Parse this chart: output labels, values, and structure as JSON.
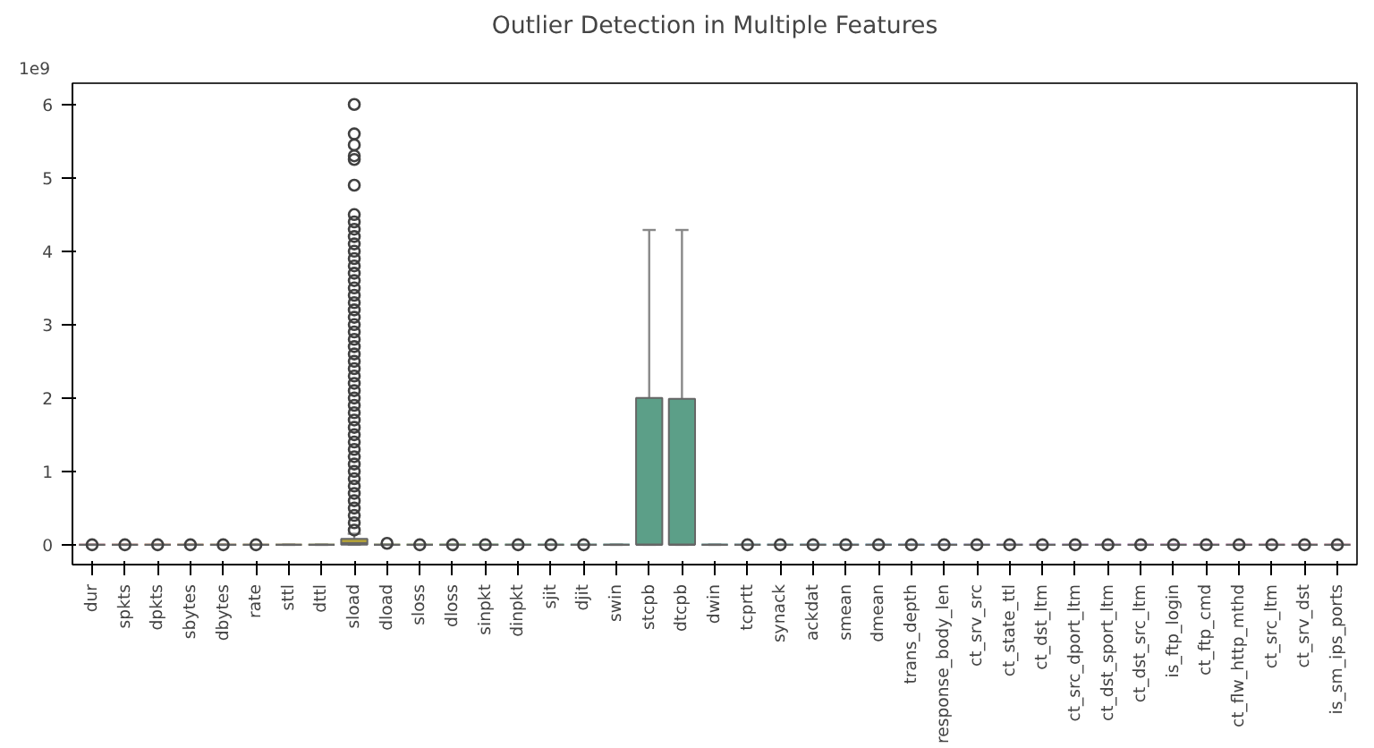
{
  "chart_data": {
    "type": "box",
    "title": "Outlier Detection in Multiple Features",
    "annotations": [
      "1e9"
    ],
    "categories": [
      "dur",
      "spkts",
      "dpkts",
      "sbytes",
      "dbytes",
      "rate",
      "sttl",
      "dttl",
      "sload",
      "dload",
      "sloss",
      "dloss",
      "sinpkt",
      "dinpkt",
      "sjit",
      "djit",
      "swin",
      "stcpb",
      "dtcpb",
      "dwin",
      "tcprtt",
      "synack",
      "ackdat",
      "smean",
      "dmean",
      "trans_depth",
      "response_body_len",
      "ct_srv_src",
      "ct_state_ttl",
      "ct_dst_ltm",
      "ct_src_dport_ltm",
      "ct_dst_sport_ltm",
      "ct_dst_src_ltm",
      "is_ftp_login",
      "ct_ftp_cmd",
      "ct_flw_http_mthd",
      "ct_src_ltm",
      "ct_srv_dst",
      "is_sm_ips_ports"
    ],
    "colors": [
      "#f77189",
      "#f6745c",
      "#f07b3f",
      "#dc8932",
      "#cb9132",
      "#bc9832",
      "#ae9d31",
      "#a1a231",
      "#b2a03a",
      "#88a631",
      "#77aa31",
      "#5fae31",
      "#33b032",
      "#33b05f",
      "#34ae79",
      "#35ad8a",
      "#36ac96",
      "#5c9f88",
      "#5c9f88",
      "#37aaa8",
      "#38a9b1",
      "#39a7ba",
      "#3aa5c4",
      "#3ba3cf",
      "#3da0dc",
      "#4b9ced",
      "#6e95f4",
      "#8a8ef4",
      "#9f86f4",
      "#b17ff4",
      "#c276f4",
      "#d26bf4",
      "#e35ff3",
      "#f35ae3",
      "#f45fd1",
      "#f563c0",
      "#f566b1",
      "#f669a2",
      "#f66d94"
    ],
    "boxes": [
      {
        "low": 0,
        "q1": 0,
        "median": 0,
        "q3": 0,
        "high": 0,
        "outliers": [
          0
        ]
      },
      {
        "low": 0,
        "q1": 0,
        "median": 0,
        "q3": 0,
        "high": 0,
        "outliers": [
          0
        ]
      },
      {
        "low": 0,
        "q1": 0,
        "median": 0,
        "q3": 0,
        "high": 0,
        "outliers": [
          0
        ]
      },
      {
        "low": 0,
        "q1": 0,
        "median": 0,
        "q3": 0,
        "high": 0,
        "outliers": [
          0
        ]
      },
      {
        "low": 0,
        "q1": 0,
        "median": 0,
        "q3": 0,
        "high": 0,
        "outliers": [
          0
        ]
      },
      {
        "low": 0,
        "q1": 0,
        "median": 0,
        "q3": 0,
        "high": 0,
        "outliers": [
          0
        ]
      },
      {
        "low": 0,
        "q1": 0,
        "median": 0,
        "q3": 0,
        "high": 0
      },
      {
        "low": 0,
        "q1": 0,
        "median": 0,
        "q3": 0,
        "high": 0
      },
      {
        "low": 0,
        "q1": 0,
        "median": 0.02,
        "q3": 0.08,
        "high": 0.15,
        "outliers": [
          0.2,
          0.3,
          0.4,
          0.5,
          0.6,
          0.7,
          0.8,
          0.9,
          1.0,
          1.1,
          1.2,
          1.3,
          1.4,
          1.5,
          1.6,
          1.7,
          1.8,
          1.9,
          2.0,
          2.1,
          2.2,
          2.3,
          2.4,
          2.5,
          2.6,
          2.7,
          2.8,
          2.9,
          3.0,
          3.1,
          3.2,
          3.3,
          3.4,
          3.5,
          3.6,
          3.7,
          3.8,
          3.9,
          4.0,
          4.1,
          4.2,
          4.3,
          4.4,
          4.5,
          4.9,
          5.25,
          5.3,
          5.45,
          5.6,
          6.0
        ]
      },
      {
        "low": 0,
        "q1": 0,
        "median": 0,
        "q3": 0,
        "high": 0,
        "outliers": [
          0.02
        ]
      },
      {
        "low": 0,
        "q1": 0,
        "median": 0,
        "q3": 0,
        "high": 0,
        "outliers": [
          0
        ]
      },
      {
        "low": 0,
        "q1": 0,
        "median": 0,
        "q3": 0,
        "high": 0,
        "outliers": [
          0
        ]
      },
      {
        "low": 0,
        "q1": 0,
        "median": 0,
        "q3": 0,
        "high": 0,
        "outliers": [
          0
        ]
      },
      {
        "low": 0,
        "q1": 0,
        "median": 0,
        "q3": 0,
        "high": 0,
        "outliers": [
          0
        ]
      },
      {
        "low": 0,
        "q1": 0,
        "median": 0,
        "q3": 0,
        "high": 0,
        "outliers": [
          0
        ]
      },
      {
        "low": 0,
        "q1": 0,
        "median": 0,
        "q3": 0,
        "high": 0,
        "outliers": [
          0
        ]
      },
      {
        "low": 0,
        "q1": 0,
        "median": 0,
        "q3": 0,
        "high": 0
      },
      {
        "low": 0,
        "q1": 0,
        "median": 0,
        "q3": 2.0,
        "high": 4.29
      },
      {
        "low": 0,
        "q1": 0,
        "median": 0,
        "q3": 1.99,
        "high": 4.29
      },
      {
        "low": 0,
        "q1": 0,
        "median": 0,
        "q3": 0,
        "high": 0
      },
      {
        "low": 0,
        "q1": 0,
        "median": 0,
        "q3": 0,
        "high": 0,
        "outliers": [
          0
        ]
      },
      {
        "low": 0,
        "q1": 0,
        "median": 0,
        "q3": 0,
        "high": 0,
        "outliers": [
          0
        ]
      },
      {
        "low": 0,
        "q1": 0,
        "median": 0,
        "q3": 0,
        "high": 0,
        "outliers": [
          0
        ]
      },
      {
        "low": 0,
        "q1": 0,
        "median": 0,
        "q3": 0,
        "high": 0,
        "outliers": [
          0
        ]
      },
      {
        "low": 0,
        "q1": 0,
        "median": 0,
        "q3": 0,
        "high": 0,
        "outliers": [
          0
        ]
      },
      {
        "low": 0,
        "q1": 0,
        "median": 0,
        "q3": 0,
        "high": 0,
        "outliers": [
          0
        ]
      },
      {
        "low": 0,
        "q1": 0,
        "median": 0,
        "q3": 0,
        "high": 0,
        "outliers": [
          0
        ]
      },
      {
        "low": 0,
        "q1": 0,
        "median": 0,
        "q3": 0,
        "high": 0,
        "outliers": [
          0
        ]
      },
      {
        "low": 0,
        "q1": 0,
        "median": 0,
        "q3": 0,
        "high": 0,
        "outliers": [
          0
        ]
      },
      {
        "low": 0,
        "q1": 0,
        "median": 0,
        "q3": 0,
        "high": 0,
        "outliers": [
          0
        ]
      },
      {
        "low": 0,
        "q1": 0,
        "median": 0,
        "q3": 0,
        "high": 0,
        "outliers": [
          0
        ]
      },
      {
        "low": 0,
        "q1": 0,
        "median": 0,
        "q3": 0,
        "high": 0,
        "outliers": [
          0
        ]
      },
      {
        "low": 0,
        "q1": 0,
        "median": 0,
        "q3": 0,
        "high": 0,
        "outliers": [
          0
        ]
      },
      {
        "low": 0,
        "q1": 0,
        "median": 0,
        "q3": 0,
        "high": 0,
        "outliers": [
          0
        ]
      },
      {
        "low": 0,
        "q1": 0,
        "median": 0,
        "q3": 0,
        "high": 0,
        "outliers": [
          0
        ]
      },
      {
        "low": 0,
        "q1": 0,
        "median": 0,
        "q3": 0,
        "high": 0,
        "outliers": [
          0
        ]
      },
      {
        "low": 0,
        "q1": 0,
        "median": 0,
        "q3": 0,
        "high": 0,
        "outliers": [
          0
        ]
      },
      {
        "low": 0,
        "q1": 0,
        "median": 0,
        "q3": 0,
        "high": 0,
        "outliers": [
          0
        ]
      },
      {
        "low": 0,
        "q1": 0,
        "median": 0,
        "q3": 0,
        "high": 0,
        "outliers": [
          0
        ]
      }
    ],
    "ylim": [
      -0.27,
      6.29
    ],
    "yticks": [
      0,
      1,
      2,
      3,
      4,
      5,
      6
    ],
    "grid": false,
    "marker": "circle"
  }
}
